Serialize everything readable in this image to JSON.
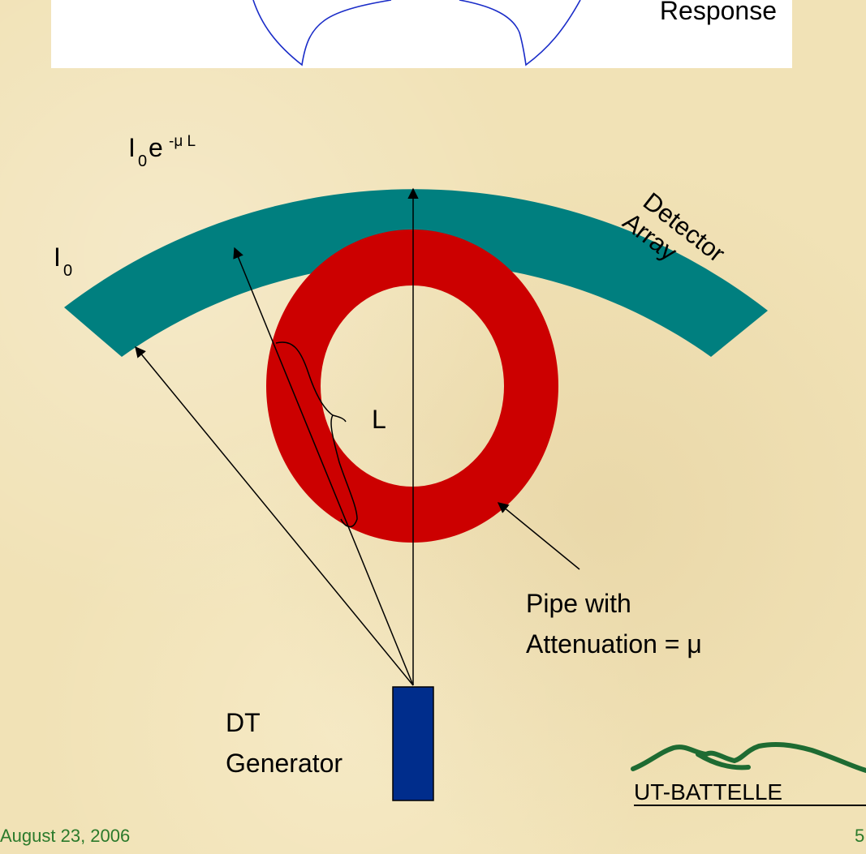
{
  "top_panel": {
    "response_label": "Response"
  },
  "diagram": {
    "source_intensity": {
      "base": "I",
      "sub": "0"
    },
    "attenuated_intensity": {
      "base": "I",
      "sub": "0",
      "tail": "e",
      "exponent": "-μ L"
    },
    "detector_label_line1": "Detector",
    "detector_label_line2": "Array",
    "path_length_label": "L",
    "pipe_label_line1": "Pipe with",
    "pipe_label_line2": "Attenuation = μ",
    "generator_label_line1": "DT",
    "generator_label_line2": "Generator"
  },
  "logo": {
    "text": "UT-BATTELLE"
  },
  "footer": {
    "date": "August 23, 2006",
    "page_number": "5"
  },
  "colors": {
    "detector_teal": "#007f7f",
    "pipe_red": "#cc0000",
    "generator_blue": "#002d8c",
    "response_curve": "#1a2cc8",
    "logo_green": "#1e6b32",
    "footer_green": "#2b7a2b"
  }
}
